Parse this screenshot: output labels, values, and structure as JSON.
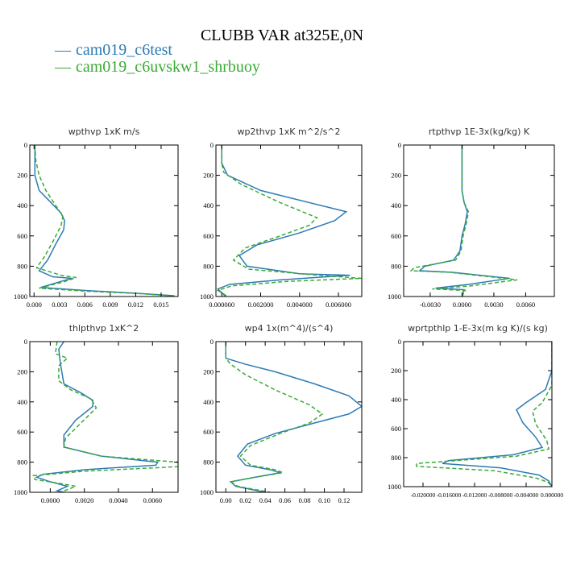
{
  "title": "CLUBB VAR at325E,0N",
  "legend": [
    {
      "symbol": "—",
      "label": "cam019_c6test",
      "color": "#2c7bb6",
      "dash": false
    },
    {
      "symbol": "—",
      "label": "cam019_c6uvskw1_shrbuoy",
      "color": "#3aaa35",
      "dash": true
    }
  ],
  "chart_data": [
    {
      "type": "line",
      "title": "wpthvp  1xK m/s",
      "xlim": [
        -0.0005,
        0.017
      ],
      "ylim": [
        1000,
        0
      ],
      "xticks": [
        0.0,
        0.003,
        0.006,
        0.009,
        0.012,
        0.015
      ],
      "xtick_labels": [
        "0.000",
        "0.003",
        "0.006",
        "0.009",
        "0.012",
        "0.015"
      ],
      "yticks": [
        0,
        200,
        400,
        600,
        800,
        1000
      ],
      "ytick_labels": [
        "0",
        "200",
        "400",
        "600",
        "800",
        "1000"
      ],
      "series": [
        {
          "name": "cam019_c6test",
          "points": [
            [
              0.0001,
              0
            ],
            [
              0.0001,
              100
            ],
            [
              0.0001,
              200
            ],
            [
              0.0006,
              300
            ],
            [
              0.002,
              380
            ],
            [
              0.0032,
              450
            ],
            [
              0.0036,
              500
            ],
            [
              0.0035,
              560
            ],
            [
              0.0026,
              650
            ],
            [
              0.0016,
              760
            ],
            [
              0.0006,
              830
            ],
            [
              0.0022,
              870
            ],
            [
              0.0045,
              880
            ],
            [
              0.0032,
              900
            ],
            [
              0.0008,
              940
            ],
            [
              0.006,
              960
            ],
            [
              0.0125,
              980
            ],
            [
              0.0165,
              995
            ]
          ]
        },
        {
          "name": "cam019_c6uvskw1_shrbuoy",
          "points": [
            [
              0.0001,
              0
            ],
            [
              0.0002,
              100
            ],
            [
              0.0006,
              200
            ],
            [
              0.0014,
              300
            ],
            [
              0.0028,
              420
            ],
            [
              0.0034,
              470
            ],
            [
              0.0032,
              530
            ],
            [
              0.0022,
              640
            ],
            [
              0.0012,
              740
            ],
            [
              0.0003,
              810
            ],
            [
              0.0032,
              860
            ],
            [
              0.005,
              875
            ],
            [
              0.0034,
              905
            ],
            [
              0.0006,
              945
            ],
            [
              0.0062,
              965
            ],
            [
              0.0128,
              982
            ],
            [
              0.0168,
              997
            ]
          ]
        }
      ]
    },
    {
      "type": "line",
      "title": "wp2thvp  1xK m^2/s^2",
      "xlim": [
        -0.0003,
        0.0072
      ],
      "ylim": [
        1000,
        0
      ],
      "xticks": [
        0.0,
        0.002,
        0.004,
        0.006
      ],
      "xtick_labels": [
        "0.000000",
        "0.002000",
        "0.004000",
        "0.006000"
      ],
      "yticks": [
        0,
        200,
        400,
        600,
        800,
        1000
      ],
      "ytick_labels": [
        "0",
        "200",
        "400",
        "600",
        "800",
        "1000"
      ],
      "series": [
        {
          "name": "cam019_c6test",
          "points": [
            [
              0.0,
              0
            ],
            [
              0.0,
              120
            ],
            [
              0.0003,
              200
            ],
            [
              0.002,
              300
            ],
            [
              0.0045,
              380
            ],
            [
              0.0064,
              440
            ],
            [
              0.0058,
              500
            ],
            [
              0.004,
              580
            ],
            [
              0.0018,
              660
            ],
            [
              0.0009,
              730
            ],
            [
              0.0013,
              800
            ],
            [
              0.004,
              850
            ],
            [
              0.0066,
              860
            ],
            [
              0.003,
              890
            ],
            [
              0.0004,
              920
            ],
            [
              -0.0002,
              950
            ],
            [
              0.0002,
              1000
            ]
          ]
        },
        {
          "name": "cam019_c6uvskw1_shrbuoy",
          "points": [
            [
              0.0,
              0
            ],
            [
              0.0,
              120
            ],
            [
              0.0001,
              180
            ],
            [
              0.001,
              260
            ],
            [
              0.003,
              380
            ],
            [
              0.0049,
              480
            ],
            [
              0.0045,
              530
            ],
            [
              0.003,
              600
            ],
            [
              0.0012,
              680
            ],
            [
              0.0006,
              760
            ],
            [
              0.0014,
              820
            ],
            [
              0.005,
              860
            ],
            [
              0.0072,
              880
            ],
            [
              0.0034,
              900
            ],
            [
              0.0005,
              930
            ],
            [
              -0.0002,
              960
            ],
            [
              0.0003,
              1000
            ]
          ]
        }
      ]
    },
    {
      "type": "line",
      "title": "rtpthvp  1E-3x(kg/kg) K",
      "xlim": [
        -0.0055,
        0.0087
      ],
      "ylim": [
        1000,
        0
      ],
      "xticks": [
        -0.003,
        0.0,
        0.003,
        0.006
      ],
      "xtick_labels": [
        "-0.0030",
        "0.0000",
        "0.0030",
        "0.0060"
      ],
      "yticks": [
        0,
        200,
        400,
        600,
        800,
        1000
      ],
      "ytick_labels": [
        "0",
        "200",
        "400",
        "600",
        "800",
        "1000"
      ],
      "series": [
        {
          "name": "cam019_c6test",
          "points": [
            [
              0.0,
              0
            ],
            [
              0.0,
              200
            ],
            [
              0.0,
              300
            ],
            [
              0.0002,
              380
            ],
            [
              0.0005,
              440
            ],
            [
              0.0003,
              520
            ],
            [
              0.0,
              600
            ],
            [
              -0.0002,
              700
            ],
            [
              -0.0008,
              760
            ],
            [
              -0.0035,
              800
            ],
            [
              -0.004,
              830
            ],
            [
              -0.001,
              840
            ],
            [
              0.0045,
              880
            ],
            [
              0.0006,
              920
            ],
            [
              -0.0025,
              945
            ],
            [
              0.0002,
              955
            ],
            [
              0.0,
              1000
            ]
          ]
        },
        {
          "name": "cam019_c6uvskw1_shrbuoy",
          "points": [
            [
              0.0,
              0
            ],
            [
              0.0,
              200
            ],
            [
              0.0,
              300
            ],
            [
              0.0002,
              380
            ],
            [
              0.0006,
              440
            ],
            [
              0.0004,
              520
            ],
            [
              0.0001,
              600
            ],
            [
              -0.0001,
              700
            ],
            [
              -0.0006,
              760
            ],
            [
              -0.0045,
              810
            ],
            [
              -0.0048,
              830
            ],
            [
              -0.0012,
              840
            ],
            [
              0.0052,
              890
            ],
            [
              0.0008,
              930
            ],
            [
              -0.0028,
              950
            ],
            [
              0.0003,
              960
            ],
            [
              0.0,
              1000
            ]
          ]
        }
      ]
    },
    {
      "type": "line",
      "title": "thlpthvp  1xK^2",
      "xlim": [
        -0.0012,
        0.0075
      ],
      "ylim": [
        1000,
        0
      ],
      "xticks": [
        0.0,
        0.002,
        0.004,
        0.006
      ],
      "xtick_labels": [
        "0.0000",
        "0.0020",
        "0.0040",
        "0.0060"
      ],
      "yticks": [
        0,
        200,
        400,
        600,
        800,
        1000
      ],
      "ytick_labels": [
        "0",
        "200",
        "400",
        "600",
        "800",
        "1000"
      ],
      "series": [
        {
          "name": "cam019_c6test",
          "points": [
            [
              0.0008,
              0
            ],
            [
              0.0005,
              50
            ],
            [
              0.0006,
              150
            ],
            [
              0.0008,
              280
            ],
            [
              0.0018,
              340
            ],
            [
              0.0025,
              390
            ],
            [
              0.0025,
              430
            ],
            [
              0.0015,
              520
            ],
            [
              0.0008,
              620
            ],
            [
              0.0008,
              700
            ],
            [
              0.003,
              760
            ],
            [
              0.0063,
              800
            ],
            [
              0.0062,
              820
            ],
            [
              0.002,
              850
            ],
            [
              -0.0004,
              880
            ],
            [
              -0.0008,
              900
            ],
            [
              0.0,
              930
            ],
            [
              0.001,
              960
            ],
            [
              0.0004,
              990
            ],
            [
              0.0008,
              1000
            ]
          ]
        },
        {
          "name": "cam019_c6uvskw1_shrbuoy",
          "points": [
            [
              0.0004,
              0
            ],
            [
              0.0003,
              80
            ],
            [
              0.001,
              110
            ],
            [
              0.0005,
              160
            ],
            [
              0.0005,
              260
            ],
            [
              0.0012,
              320
            ],
            [
              0.0024,
              380
            ],
            [
              0.0027,
              440
            ],
            [
              0.0018,
              540
            ],
            [
              0.0009,
              640
            ],
            [
              0.0008,
              700
            ],
            [
              0.003,
              760
            ],
            [
              0.0075,
              800
            ],
            [
              0.0075,
              830
            ],
            [
              0.002,
              860
            ],
            [
              -0.001,
              890
            ],
            [
              -0.0009,
              915
            ],
            [
              0.0005,
              940
            ],
            [
              0.0015,
              960
            ],
            [
              0.0006,
              1000
            ]
          ]
        }
      ]
    },
    {
      "type": "line",
      "title": "wp4  1x(m^4)/(s^4)",
      "xlim": [
        -0.01,
        0.138
      ],
      "ylim": [
        1000,
        0
      ],
      "xticks": [
        0.0,
        0.02,
        0.04,
        0.06,
        0.08,
        0.1,
        0.12
      ],
      "xtick_labels": [
        "0.00",
        "0.02",
        "0.04",
        "0.06",
        "0.08",
        "0.10",
        "0.12"
      ],
      "yticks": [
        0,
        200,
        400,
        600,
        800,
        1000
      ],
      "ytick_labels": [
        "0",
        "200",
        "400",
        "600",
        "800",
        "1000"
      ],
      "series": [
        {
          "name": "cam019_c6test",
          "points": [
            [
              0.0,
              0
            ],
            [
              0.0,
              110
            ],
            [
              0.02,
              150
            ],
            [
              0.05,
              200
            ],
            [
              0.09,
              280
            ],
            [
              0.125,
              360
            ],
            [
              0.138,
              430
            ],
            [
              0.125,
              480
            ],
            [
              0.09,
              540
            ],
            [
              0.05,
              610
            ],
            [
              0.022,
              680
            ],
            [
              0.012,
              760
            ],
            [
              0.02,
              820
            ],
            [
              0.045,
              850
            ],
            [
              0.055,
              870
            ],
            [
              0.03,
              900
            ],
            [
              0.005,
              930
            ],
            [
              0.01,
              960
            ],
            [
              0.04,
              1000
            ]
          ]
        },
        {
          "name": "cam019_c6uvskw1_shrbuoy",
          "points": [
            [
              0.0,
              0
            ],
            [
              0.0,
              110
            ],
            [
              0.005,
              150
            ],
            [
              0.02,
              220
            ],
            [
              0.05,
              320
            ],
            [
              0.085,
              420
            ],
            [
              0.098,
              480
            ],
            [
              0.085,
              540
            ],
            [
              0.055,
              610
            ],
            [
              0.025,
              690
            ],
            [
              0.015,
              760
            ],
            [
              0.025,
              820
            ],
            [
              0.05,
              850
            ],
            [
              0.058,
              870
            ],
            [
              0.03,
              900
            ],
            [
              0.005,
              930
            ],
            [
              0.012,
              960
            ],
            [
              0.045,
              1000
            ]
          ]
        }
      ]
    },
    {
      "type": "line",
      "title": "wprtpthlp  1-E-3x(m kg K)/(s kg)",
      "xlim": [
        -0.023,
        0.0
      ],
      "ylim": [
        1000,
        0
      ],
      "xticks": [
        -0.02,
        -0.016,
        -0.012,
        -0.008,
        -0.004,
        0.0
      ],
      "xtick_labels": [
        "-0.020000",
        "-0.016000",
        "-0.012000",
        "-0.008000",
        "-0.004000",
        "0.000000"
      ],
      "yticks": [
        0,
        200,
        400,
        600,
        800,
        1000
      ],
      "ytick_labels": [
        "0",
        "200",
        "400",
        "600",
        "800",
        "1000"
      ],
      "series": [
        {
          "name": "cam019_c6test",
          "points": [
            [
              0.0,
              0
            ],
            [
              0.0,
              200
            ],
            [
              -0.001,
              330
            ],
            [
              -0.004,
              420
            ],
            [
              -0.0055,
              470
            ],
            [
              -0.0045,
              560
            ],
            [
              -0.0025,
              660
            ],
            [
              -0.0015,
              730
            ],
            [
              -0.006,
              780
            ],
            [
              -0.016,
              820
            ],
            [
              -0.017,
              840
            ],
            [
              -0.008,
              870
            ],
            [
              -0.002,
              920
            ],
            [
              -0.0005,
              960
            ],
            [
              0.0,
              1000
            ]
          ]
        },
        {
          "name": "cam019_c6uvskw1_shrbuoy",
          "points": [
            [
              0.0,
              0
            ],
            [
              0.0,
              300
            ],
            [
              -0.0015,
              420
            ],
            [
              -0.003,
              480
            ],
            [
              -0.0025,
              570
            ],
            [
              -0.0008,
              680
            ],
            [
              -0.0005,
              740
            ],
            [
              -0.0055,
              790
            ],
            [
              -0.021,
              840
            ],
            [
              -0.021,
              860
            ],
            [
              -0.009,
              890
            ],
            [
              -0.0025,
              940
            ],
            [
              -0.0006,
              970
            ],
            [
              0.0,
              1000
            ]
          ]
        }
      ]
    }
  ]
}
